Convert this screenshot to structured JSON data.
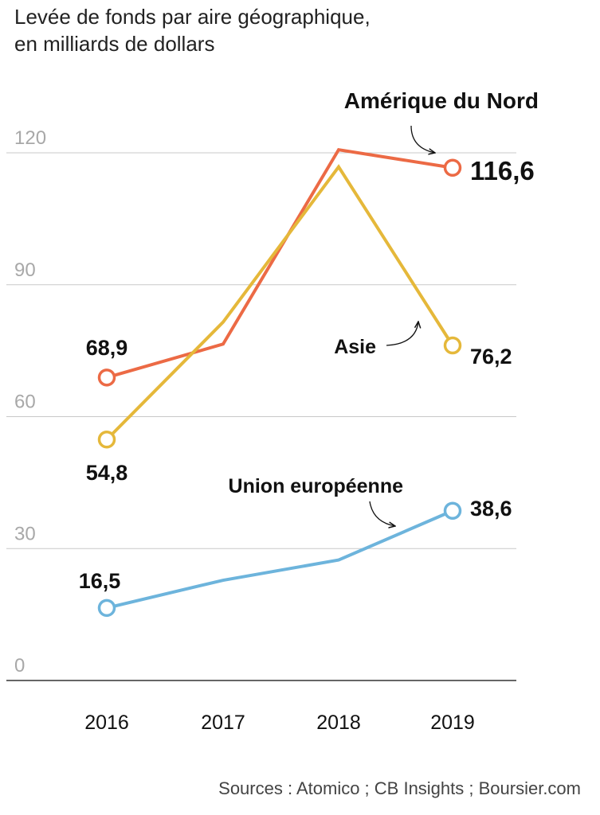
{
  "title": {
    "line1": "Levée de fonds par aire géographique,",
    "line2": "en milliards de dollars"
  },
  "source": "Sources : Atomico ; CB Insights ; Boursier.com",
  "chart_data": {
    "type": "line",
    "title": "Levée de fonds par aire géographique, en milliards de dollars",
    "xlabel": "",
    "ylabel": "",
    "categories": [
      "2016",
      "2017",
      "2018",
      "2019"
    ],
    "ylim": [
      0,
      120
    ],
    "yticks": [
      0,
      30,
      60,
      90,
      120
    ],
    "ytick_labels": [
      "0",
      "30",
      "60",
      "90",
      "120"
    ],
    "grid": true,
    "series": [
      {
        "name": "Amérique du Nord",
        "color": "#ec6a45",
        "values": [
          68.9,
          76.5,
          120.7,
          116.6
        ],
        "labels": [
          "68,9",
          "",
          "",
          "116,6"
        ]
      },
      {
        "name": "Asie",
        "color": "#e5b83a",
        "values": [
          54.8,
          81.5,
          116.8,
          76.2
        ],
        "labels": [
          "54,8",
          "",
          "",
          "76,2"
        ]
      },
      {
        "name": "Union européenne",
        "color": "#6db4dc",
        "values": [
          16.5,
          22.8,
          27.4,
          38.6
        ],
        "labels": [
          "16,5",
          "",
          "",
          "38,6"
        ]
      }
    ]
  }
}
